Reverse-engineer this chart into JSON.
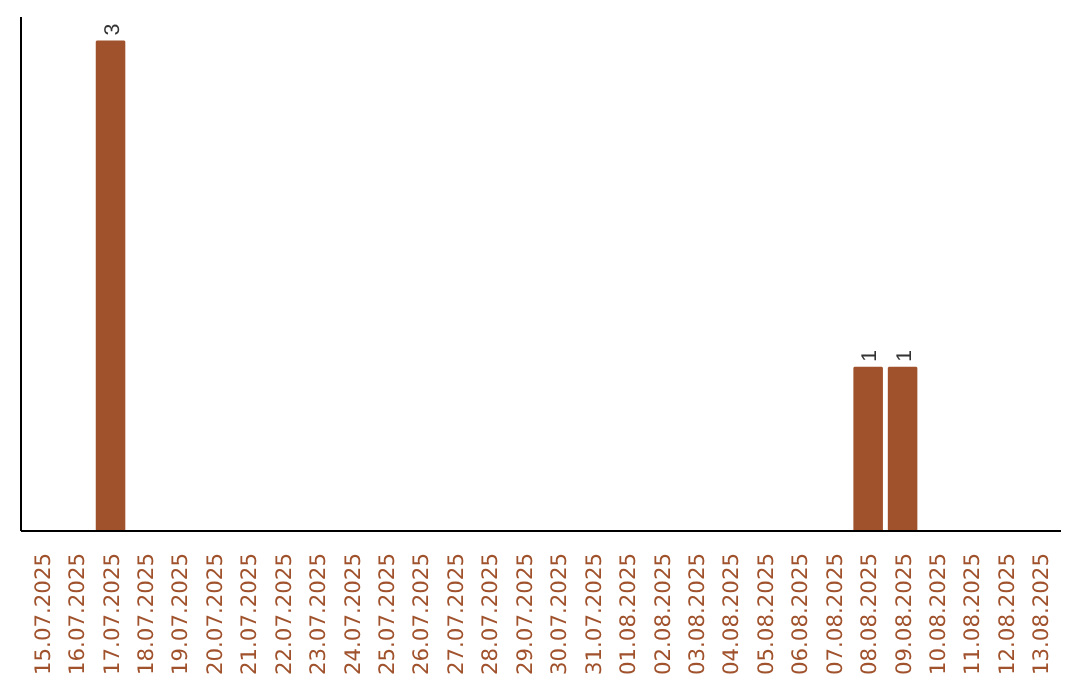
{
  "chart_data": {
    "type": "bar",
    "categories": [
      "15.07.2025",
      "16.07.2025",
      "17.07.2025",
      "18.07.2025",
      "19.07.2025",
      "20.07.2025",
      "21.07.2025",
      "22.07.2025",
      "23.07.2025",
      "24.07.2025",
      "25.07.2025",
      "26.07.2025",
      "27.07.2025",
      "28.07.2025",
      "29.07.2025",
      "30.07.2025",
      "31.07.2025",
      "01.08.2025",
      "02.08.2025",
      "03.08.2025",
      "04.08.2025",
      "05.08.2025",
      "06.08.2025",
      "07.08.2025",
      "08.08.2025",
      "09.08.2025",
      "10.08.2025",
      "11.08.2025",
      "12.08.2025",
      "13.08.2025"
    ],
    "values": [
      0,
      0,
      3,
      0,
      0,
      0,
      0,
      0,
      0,
      0,
      0,
      0,
      0,
      0,
      0,
      0,
      0,
      0,
      0,
      0,
      0,
      0,
      0,
      0,
      1,
      1,
      0,
      0,
      0,
      0
    ],
    "value_labels": [
      null,
      null,
      "3",
      null,
      null,
      null,
      null,
      null,
      null,
      null,
      null,
      null,
      null,
      null,
      null,
      null,
      null,
      null,
      null,
      null,
      null,
      null,
      null,
      null,
      "1",
      "1",
      null,
      null,
      null,
      null
    ],
    "color": "#a0522d",
    "grid": false,
    "tick_labels": "x"
  }
}
